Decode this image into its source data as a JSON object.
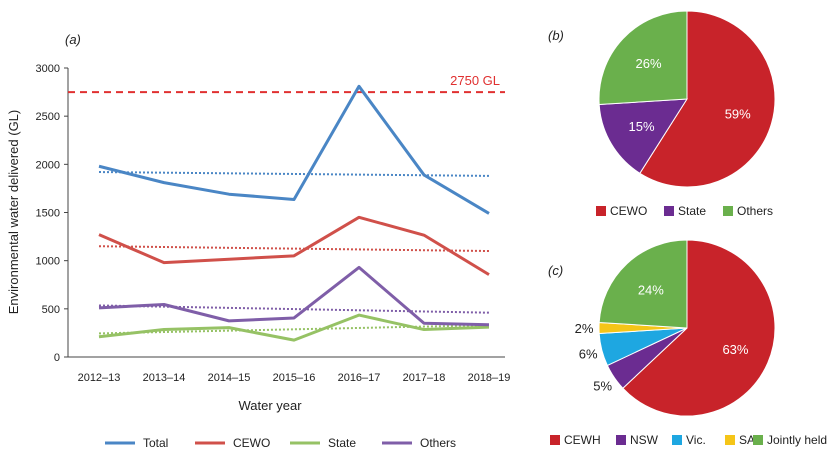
{
  "chart_data": [
    {
      "type": "line",
      "panel_label": "(a)",
      "xlabel": "Water year",
      "ylabel": "Environmental water delivered (GL)",
      "categories": [
        "2012–13",
        "2013–14",
        "2014–15",
        "2015–16",
        "2016–17",
        "2017–18",
        "2018–19"
      ],
      "ylim": [
        0,
        3000
      ],
      "yticks": [
        0,
        500,
        1000,
        1500,
        2000,
        2500,
        3000
      ],
      "reference_line": {
        "value": 2750,
        "label": "2750 GL",
        "color": "#e03030"
      },
      "series": [
        {
          "name": "Total",
          "color": "#4a86c5",
          "values": [
            1980,
            1810,
            1690,
            1635,
            2810,
            1890,
            1490
          ],
          "trend": [
            1920,
            1880
          ]
        },
        {
          "name": "CEWO",
          "color": "#d0504a",
          "values": [
            1270,
            980,
            1015,
            1050,
            1450,
            1265,
            855
          ],
          "trend": [
            1150,
            1100
          ]
        },
        {
          "name": "State",
          "color": "#96c265",
          "values": [
            210,
            285,
            305,
            175,
            435,
            285,
            310
          ],
          "trend": [
            245,
            330
          ]
        },
        {
          "name": "Others",
          "color": "#7f5ea8",
          "values": [
            510,
            545,
            375,
            405,
            930,
            350,
            335
          ],
          "trend": [
            535,
            460
          ]
        }
      ],
      "legend_position": "bottom"
    },
    {
      "type": "pie",
      "panel_label": "(b)",
      "slices": [
        {
          "name": "CEWO",
          "value": 59,
          "label": "59%",
          "color": "#c8232a"
        },
        {
          "name": "State",
          "value": 15,
          "label": "15%",
          "color": "#6b2c91"
        },
        {
          "name": "Others",
          "value": 26,
          "label": "26%",
          "color": "#6ab04c"
        }
      ],
      "legend_position": "bottom"
    },
    {
      "type": "pie",
      "panel_label": "(c)",
      "slices": [
        {
          "name": "CEWH",
          "value": 63,
          "label": "63%",
          "color": "#c8232a"
        },
        {
          "name": "NSW",
          "value": 5,
          "label": "5%",
          "color": "#6b2c91"
        },
        {
          "name": "Vic.",
          "value": 6,
          "label": "6%",
          "color": "#1ea7e1"
        },
        {
          "name": "SA",
          "value": 2,
          "label": "2%",
          "color": "#f5c518"
        },
        {
          "name": "Jointly held",
          "value": 24,
          "label": "24%",
          "color": "#6ab04c"
        }
      ],
      "legend_position": "bottom"
    }
  ]
}
